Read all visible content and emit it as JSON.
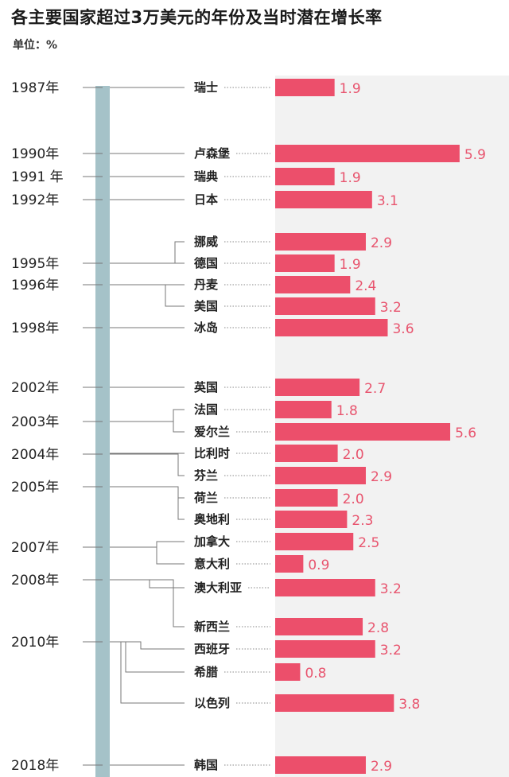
{
  "header": {
    "title": "各主要国家超过3万美元的年份及当时潜在增长率",
    "unit": "单位：%"
  },
  "colors": {
    "bar": "#ec4f6b",
    "value_text": "#e8546e",
    "timeline": "#a5c2c8",
    "connector": "#777777",
    "background_right": "#f2f2f2"
  },
  "chart_data": {
    "type": "bar",
    "orientation": "horizontal",
    "title": "各主要国家超过3万美元的年份及当时潜在增长率",
    "unit": "单位：%",
    "years": [
      "1987年",
      "1990年",
      "1991 年",
      "1992年",
      "1995年",
      "1996年",
      "1998年",
      "2002年",
      "2003年",
      "2004年",
      "2005年",
      "2007年",
      "2008年",
      "2010年",
      "2018年"
    ],
    "categories": [
      "瑞士",
      "卢森堡",
      "瑞典",
      "日本",
      "挪威",
      "德国",
      "丹麦",
      "美国",
      "冰岛",
      "英国",
      "法国",
      "爱尔兰",
      "比利时",
      "芬兰",
      "荷兰",
      "奥地利",
      "加拿大",
      "意大利",
      "澳大利亚",
      "新西兰",
      "西班牙",
      "希腊",
      "以色列",
      "韩国"
    ],
    "values": [
      1.9,
      5.9,
      1.9,
      3.1,
      2.9,
      1.9,
      2.4,
      3.2,
      3.6,
      2.7,
      1.8,
      5.6,
      2.0,
      2.9,
      2.0,
      2.3,
      2.5,
      0.9,
      3.2,
      2.8,
      3.2,
      0.8,
      3.8,
      2.9
    ],
    "value_labels": [
      "1.9",
      "5.9",
      "1.9",
      "3.1",
      "2.9",
      "1.9",
      "2.4",
      "3.2",
      "3.6",
      "2.7",
      "1.8",
      "5.6",
      "2.0",
      "2.9",
      "2.0",
      "2.3",
      "2.5",
      "0.9",
      "3.2",
      "2.8",
      "3.2",
      "0.8",
      "3.8",
      "2.9"
    ],
    "country_year": [
      "1987年",
      "1990年",
      "1991 年",
      "1992年",
      "1995年",
      "1995年",
      "1996年",
      "1996年",
      "1998年",
      "2002年",
      "2003年",
      "2003年",
      "2004年",
      "2004年",
      "2005年",
      "2005年",
      "2007年",
      "2007年",
      "2008年",
      "2008年",
      "2010年",
      "2010年",
      "2010年",
      "2018年"
    ],
    "xlim": [
      0,
      6.2
    ],
    "grid": false,
    "legend": "none"
  }
}
